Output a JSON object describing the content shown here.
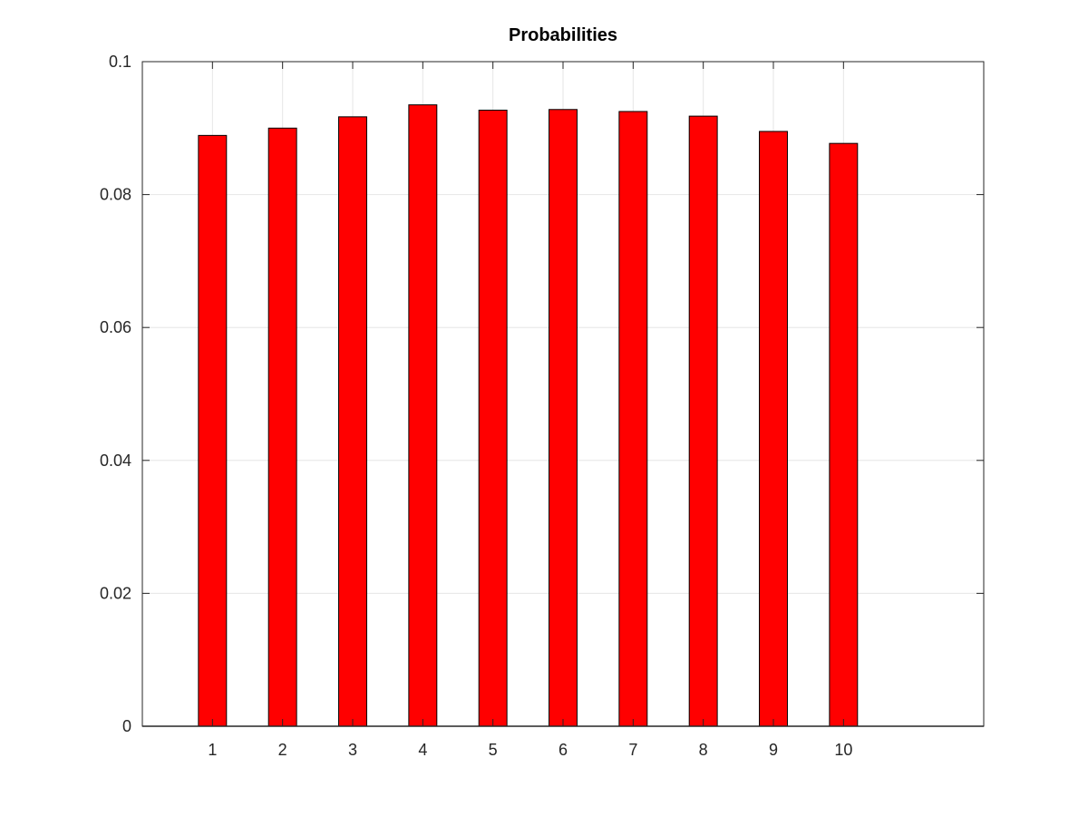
{
  "chart_data": {
    "type": "bar",
    "title": "Probabilities",
    "xlabel": "",
    "ylabel": "",
    "categories": [
      "1",
      "2",
      "3",
      "4",
      "5",
      "6",
      "7",
      "8",
      "9",
      "10"
    ],
    "values": [
      0.0889,
      0.09,
      0.0917,
      0.0935,
      0.0927,
      0.0928,
      0.0925,
      0.0918,
      0.0895,
      0.0877
    ],
    "xlim": [
      0,
      12
    ],
    "ylim": [
      0,
      0.1
    ],
    "y_ticks": [
      "0",
      "0.02",
      "0.04",
      "0.06",
      "0.08",
      "0.1"
    ],
    "y_tick_values": [
      0,
      0.02,
      0.04,
      0.06,
      0.08,
      0.1
    ],
    "x_tick_values": [
      1,
      2,
      3,
      4,
      5,
      6,
      7,
      8,
      9,
      10
    ],
    "grid": true,
    "bar_color": "#ff0000",
    "edge_color": "#000000"
  }
}
